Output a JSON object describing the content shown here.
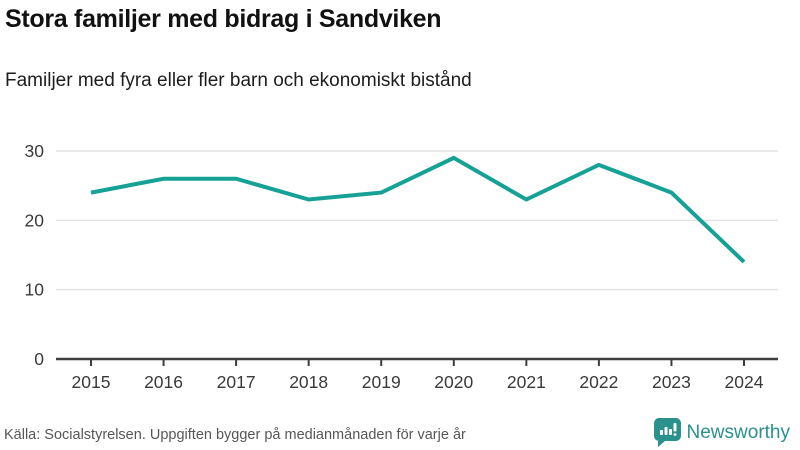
{
  "header": {
    "title_note": "bound from chart_data"
  },
  "chart_data": {
    "type": "line",
    "title": "Stora familjer med bidrag i Sandviken",
    "subtitle": "Familjer med fyra eller fler barn och ekonomiskt bistånd",
    "x": [
      2015,
      2016,
      2017,
      2018,
      2019,
      2020,
      2021,
      2022,
      2023,
      2024
    ],
    "series": [
      {
        "name": "Familjer med fyra eller fler barn och ekonomiskt bistånd",
        "values": [
          24,
          26,
          26,
          23,
          24,
          29,
          23,
          28,
          24,
          14
        ]
      }
    ],
    "xlabel": "",
    "ylabel": "",
    "ylim": [
      0,
      30
    ],
    "yticks": [
      0,
      10,
      20,
      30
    ],
    "grid": true,
    "legend": false
  },
  "footer": {
    "source": "Källa: Socialstyrelsen. Uppgiften bygger på medianmånaden för varje år",
    "brand": "Newsworthy"
  },
  "colors": {
    "line": "#15a195",
    "grid": "#e4e4e4",
    "axis": "#3d3d3d",
    "tick_label": "#3a3a3a",
    "title": "#111111",
    "muted": "#575757",
    "brand": "#2a918d"
  }
}
